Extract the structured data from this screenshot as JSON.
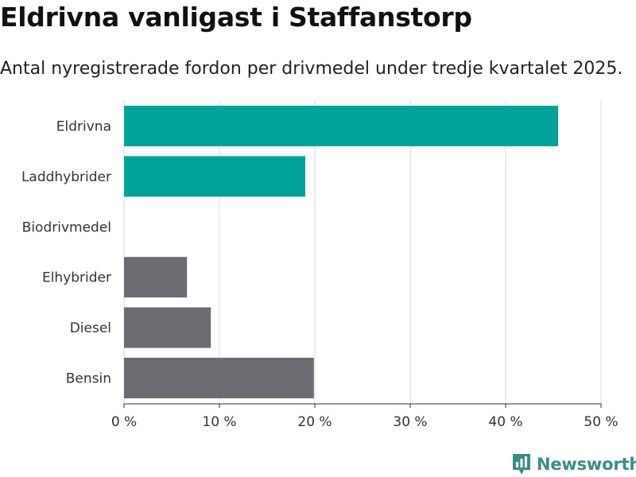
{
  "header": {
    "title": "Eldrivna vanligast i Staffanstorp",
    "subtitle": "Antal nyregistrerade fordon per drivmedel under tredje kvartalet 2025."
  },
  "brand": {
    "name": "Newsworthy",
    "color": "#3a8f84"
  },
  "colors": {
    "highlight": "#00a398",
    "neutral": "#6d6c72",
    "grid": "#d9d9d9"
  },
  "chart_data": {
    "type": "bar",
    "orientation": "horizontal",
    "title": "Eldrivna vanligast i Staffanstorp",
    "subtitle": "Antal nyregistrerade fordon per drivmedel under tredje kvartalet 2025.",
    "categories": [
      "Eldrivna",
      "Laddhybrider",
      "Biodrivmedel",
      "Elhybrider",
      "Diesel",
      "Bensin"
    ],
    "values": [
      45.5,
      19,
      0,
      6.6,
      9.1,
      19.9
    ],
    "series_colors": [
      "highlight",
      "highlight",
      "highlight",
      "neutral",
      "neutral",
      "neutral"
    ],
    "xlim": [
      0,
      50
    ],
    "xticks": [
      0,
      10,
      20,
      30,
      40,
      50
    ],
    "xtick_labels": [
      "0 %",
      "10 %",
      "20 %",
      "30 %",
      "40 %",
      "50 %"
    ],
    "xlabel": "",
    "ylabel": "",
    "grid": true,
    "legend": "none"
  }
}
